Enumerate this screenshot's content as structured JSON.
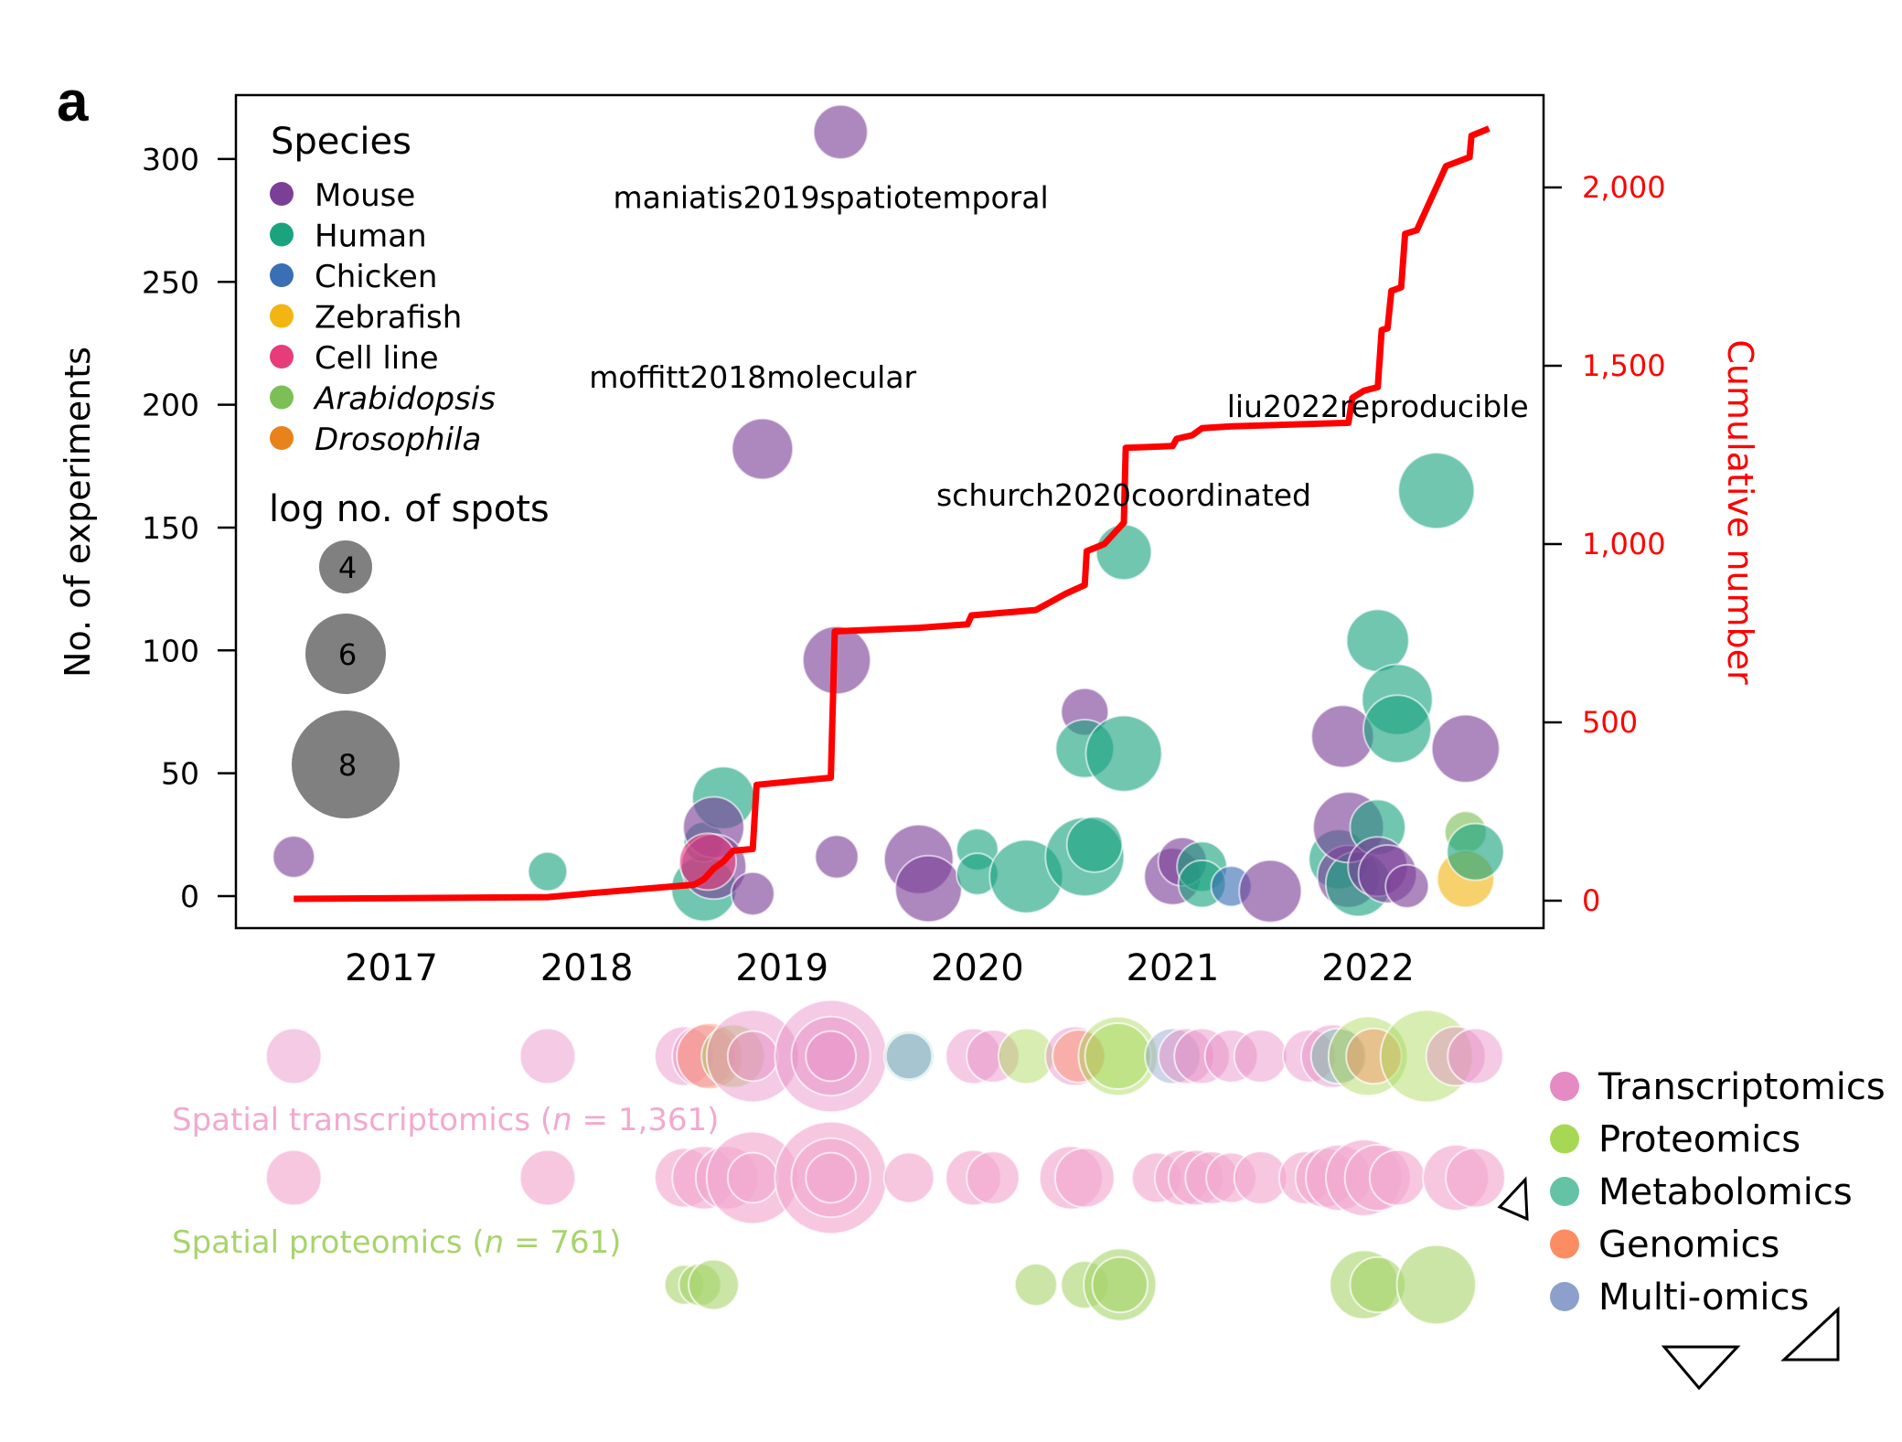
{
  "panel_label": "a",
  "chart_data": [
    {
      "type": "scatter",
      "subtype": "bubble-with-cumulative-line",
      "title": "",
      "xlabel": "",
      "ylabel": "No. of experiments",
      "y2label": "Cumulative number",
      "xlim": [
        2016.2,
        2022.9
      ],
      "ylim": [
        -12,
        325
      ],
      "y2lim": [
        -80,
        2290
      ],
      "xticks": [
        2017,
        2018,
        2019,
        2020,
        2021,
        2022
      ],
      "xtick_labels": [
        "2017",
        "2018",
        "2019",
        "2020",
        "2021",
        "2022"
      ],
      "yticks": [
        0,
        50,
        100,
        150,
        200,
        250,
        300
      ],
      "ytick_labels": [
        "0",
        "50",
        "100",
        "150",
        "200",
        "250",
        "300"
      ],
      "y2ticks": [
        0,
        500,
        1000,
        1500,
        2000
      ],
      "y2tick_labels": [
        "0",
        "500",
        "1,000",
        "1,500",
        "2,000"
      ],
      "grid": false,
      "species_legend": {
        "title": "Species",
        "placement": "top-left",
        "entries": [
          {
            "label": "Mouse",
            "color": "#7b3f98",
            "italic": false
          },
          {
            "label": "Human",
            "color": "#1aa37f",
            "italic": false
          },
          {
            "label": "Chicken",
            "color": "#3a6eb5",
            "italic": false
          },
          {
            "label": "Zebrafish",
            "color": "#f2b511",
            "italic": false
          },
          {
            "label": "Cell line",
            "color": "#e63d7a",
            "italic": false
          },
          {
            "label": "Arabidopsis",
            "color": "#7cbf57",
            "italic": true
          },
          {
            "label": "Drosophila",
            "color": "#e8821a",
            "italic": true
          }
        ]
      },
      "size_legend": {
        "title": "log no. of spots",
        "entries": [
          {
            "label": "4",
            "value": 4
          },
          {
            "label": "6",
            "value": 6
          },
          {
            "label": "8",
            "value": 8
          },
          {
            "label": "",
            "value": 0
          }
        ],
        "color": "#808080"
      },
      "annotations": [
        {
          "text": "maniatis2019spatiotemporal",
          "x": 2019.25,
          "y": 280
        },
        {
          "text": "moffitt2018molecular",
          "x": 2018.85,
          "y": 207
        },
        {
          "text": "schurch2020coordinated",
          "x": 2020.75,
          "y": 159
        },
        {
          "text": "liu2022reproducible",
          "x": 2022.05,
          "y": 195
        }
      ],
      "bubbles": [
        {
          "x": 2016.5,
          "y": 16,
          "species": "Mouse",
          "log_spots": 4.5
        },
        {
          "x": 2017.8,
          "y": 10,
          "species": "Human",
          "log_spots": 4.3
        },
        {
          "x": 2018.6,
          "y": 3,
          "species": "Human",
          "log_spots": 6.2
        },
        {
          "x": 2018.6,
          "y": 22,
          "species": "Human",
          "log_spots": 4.4
        },
        {
          "x": 2018.7,
          "y": 40,
          "species": "Human",
          "log_spots": 6.0
        },
        {
          "x": 2018.65,
          "y": 28,
          "species": "Mouse",
          "log_spots": 5.9
        },
        {
          "x": 2018.65,
          "y": 12,
          "species": "Mouse",
          "log_spots": 6.2
        },
        {
          "x": 2018.62,
          "y": 14,
          "species": "Cell line",
          "log_spots": 5.6
        },
        {
          "x": 2018.85,
          "y": 1,
          "species": "Mouse",
          "log_spots": 4.6
        },
        {
          "x": 2018.9,
          "y": 182,
          "species": "Mouse",
          "log_spots": 5.9
        },
        {
          "x": 2019.3,
          "y": 311,
          "species": "Mouse",
          "log_spots": 5.4
        },
        {
          "x": 2019.28,
          "y": 16,
          "species": "Mouse",
          "log_spots": 4.6
        },
        {
          "x": 2019.28,
          "y": 96,
          "species": "Mouse",
          "log_spots": 6.4
        },
        {
          "x": 2019.7,
          "y": 15,
          "species": "Mouse",
          "log_spots": 6.5
        },
        {
          "x": 2019.75,
          "y": 3,
          "species": "Mouse",
          "log_spots": 6.3
        },
        {
          "x": 2020.0,
          "y": 19,
          "species": "Human",
          "log_spots": 4.5
        },
        {
          "x": 2020.0,
          "y": 9,
          "species": "Human",
          "log_spots": 4.5
        },
        {
          "x": 2020.25,
          "y": 8,
          "species": "Human",
          "log_spots": 6.8
        },
        {
          "x": 2020.55,
          "y": 16,
          "species": "Human",
          "log_spots": 7.2
        },
        {
          "x": 2020.6,
          "y": 21,
          "species": "Human",
          "log_spots": 5.5
        },
        {
          "x": 2020.55,
          "y": 75,
          "species": "Mouse",
          "log_spots": 4.9
        },
        {
          "x": 2020.55,
          "y": 60,
          "species": "Human",
          "log_spots": 5.7
        },
        {
          "x": 2020.75,
          "y": 58,
          "species": "Human",
          "log_spots": 7.0
        },
        {
          "x": 2020.75,
          "y": 140,
          "species": "Human",
          "log_spots": 5.5
        },
        {
          "x": 2021.0,
          "y": 8,
          "species": "Mouse",
          "log_spots": 5.6
        },
        {
          "x": 2021.05,
          "y": 14,
          "species": "Mouse",
          "log_spots": 5.0
        },
        {
          "x": 2021.15,
          "y": 12,
          "species": "Human",
          "log_spots": 5.1
        },
        {
          "x": 2021.15,
          "y": 5,
          "species": "Human",
          "log_spots": 4.9
        },
        {
          "x": 2021.3,
          "y": 4,
          "species": "Chicken",
          "log_spots": 4.4
        },
        {
          "x": 2021.5,
          "y": 2,
          "species": "Mouse",
          "log_spots": 6.0
        },
        {
          "x": 2021.85,
          "y": 15,
          "species": "Human",
          "log_spots": 5.8
        },
        {
          "x": 2021.9,
          "y": 8,
          "species": "Mouse",
          "log_spots": 6.0
        },
        {
          "x": 2021.95,
          "y": 5,
          "species": "Human",
          "log_spots": 6.2
        },
        {
          "x": 2021.9,
          "y": 28,
          "species": "Mouse",
          "log_spots": 6.6
        },
        {
          "x": 2022.05,
          "y": 28,
          "species": "Human",
          "log_spots": 5.5
        },
        {
          "x": 2022.05,
          "y": 12,
          "species": "Mouse",
          "log_spots": 5.8
        },
        {
          "x": 2022.1,
          "y": 9,
          "species": "Mouse",
          "log_spots": 5.7
        },
        {
          "x": 2022.2,
          "y": 4,
          "species": "Mouse",
          "log_spots": 4.6
        },
        {
          "x": 2021.87,
          "y": 65,
          "species": "Mouse",
          "log_spots": 6.0
        },
        {
          "x": 2022.05,
          "y": 104,
          "species": "Human",
          "log_spots": 6.0
        },
        {
          "x": 2022.15,
          "y": 80,
          "species": "Human",
          "log_spots": 6.6
        },
        {
          "x": 2022.15,
          "y": 68,
          "species": "Human",
          "log_spots": 6.4
        },
        {
          "x": 2022.5,
          "y": 60,
          "species": "Mouse",
          "log_spots": 6.4
        },
        {
          "x": 2022.35,
          "y": 165,
          "species": "Human",
          "log_spots": 7.0
        },
        {
          "x": 2022.5,
          "y": 26,
          "species": "Arabidopsis",
          "log_spots": 4.5
        },
        {
          "x": 2022.5,
          "y": 7,
          "species": "Zebrafish",
          "log_spots": 5.6
        },
        {
          "x": 2022.55,
          "y": 18,
          "species": "Human",
          "log_spots": 5.6
        }
      ],
      "cumulative_line": {
        "color": "#ff0000",
        "points": [
          [
            2016.5,
            5
          ],
          [
            2017.8,
            10
          ],
          [
            2018.0,
            20
          ],
          [
            2018.55,
            45
          ],
          [
            2018.6,
            60
          ],
          [
            2018.65,
            90
          ],
          [
            2018.7,
            110
          ],
          [
            2018.75,
            140
          ],
          [
            2018.85,
            145
          ],
          [
            2018.87,
            325
          ],
          [
            2019.25,
            345
          ],
          [
            2019.27,
            755
          ],
          [
            2019.7,
            765
          ],
          [
            2019.95,
            775
          ],
          [
            2019.97,
            800
          ],
          [
            2020.3,
            815
          ],
          [
            2020.45,
            860
          ],
          [
            2020.55,
            885
          ],
          [
            2020.56,
            980
          ],
          [
            2020.65,
            1000
          ],
          [
            2020.75,
            1060
          ],
          [
            2020.76,
            1270
          ],
          [
            2021.0,
            1275
          ],
          [
            2021.02,
            1295
          ],
          [
            2021.1,
            1305
          ],
          [
            2021.15,
            1325
          ],
          [
            2021.3,
            1330
          ],
          [
            2021.9,
            1340
          ],
          [
            2021.92,
            1410
          ],
          [
            2021.98,
            1430
          ],
          [
            2022.05,
            1440
          ],
          [
            2022.07,
            1600
          ],
          [
            2022.1,
            1605
          ],
          [
            2022.12,
            1710
          ],
          [
            2022.17,
            1720
          ],
          [
            2022.19,
            1870
          ],
          [
            2022.25,
            1880
          ],
          [
            2022.4,
            2060
          ],
          [
            2022.52,
            2085
          ],
          [
            2022.53,
            2145
          ],
          [
            2022.62,
            2165
          ]
        ]
      }
    },
    {
      "type": "scatter",
      "subtype": "strip-bubble",
      "title": "",
      "xlim": [
        2016.2,
        2022.9
      ],
      "rows": [
        {
          "label": "Spatial transcriptomics",
          "n_prefix": " (",
          "n_symbol": "n",
          "n_text": " = 1,361)",
          "color": "#f2a9cf"
        },
        {
          "label": "Spatial proteomics",
          "n_prefix": " (",
          "n_symbol": "n",
          "n_text": " = 761)",
          "color": "#a7d46b"
        }
      ],
      "omics_legend": {
        "placement": "bottom-right",
        "entries": [
          {
            "label": "Transcriptomics",
            "color": "#e68ac3"
          },
          {
            "label": "Proteomics",
            "color": "#a6d854"
          },
          {
            "label": "Metabolomics",
            "color": "#66c2a5"
          },
          {
            "label": "Genomics",
            "color": "#fc8d62"
          },
          {
            "label": "Multi-omics",
            "color": "#8da0cb"
          }
        ]
      },
      "strip_mixed": [
        {
          "x": 2016.5,
          "r": 4.2,
          "omics": "Transcriptomics"
        },
        {
          "x": 2017.8,
          "r": 4.2,
          "omics": "Transcriptomics"
        },
        {
          "x": 2018.5,
          "r": 4.5,
          "omics": "Transcriptomics"
        },
        {
          "x": 2018.6,
          "r": 4.8,
          "omics": "Transcriptomics"
        },
        {
          "x": 2018.63,
          "r": 5.0,
          "omics": "Genomics"
        },
        {
          "x": 2018.75,
          "r": 4.8,
          "omics": "Proteomics"
        },
        {
          "x": 2018.85,
          "r": 7.0,
          "omics": "Transcriptomics"
        },
        {
          "x": 2018.85,
          "r": 3.8,
          "omics": "Transcriptomics"
        },
        {
          "x": 2019.25,
          "r": 8.5,
          "omics": "Transcriptomics"
        },
        {
          "x": 2019.25,
          "r": 6.0,
          "omics": "Transcriptomics"
        },
        {
          "x": 2019.25,
          "r": 3.8,
          "omics": "Transcriptomics"
        },
        {
          "x": 2019.65,
          "r": 3.8,
          "omics": "Metabolomics"
        },
        {
          "x": 2019.65,
          "r": 3.5,
          "omics": "Multi-omics"
        },
        {
          "x": 2019.98,
          "r": 4.2,
          "omics": "Transcriptomics"
        },
        {
          "x": 2020.08,
          "r": 4.0,
          "omics": "Transcriptomics"
        },
        {
          "x": 2020.25,
          "r": 4.2,
          "omics": "Proteomics"
        },
        {
          "x": 2020.5,
          "r": 4.5,
          "omics": "Transcriptomics"
        },
        {
          "x": 2020.52,
          "r": 4.0,
          "omics": "Genomics"
        },
        {
          "x": 2020.72,
          "r": 6.0,
          "omics": "Proteomics"
        },
        {
          "x": 2020.72,
          "r": 5.0,
          "omics": "Proteomics"
        },
        {
          "x": 2021.0,
          "r": 4.2,
          "omics": "Multi-omics"
        },
        {
          "x": 2021.07,
          "r": 4.2,
          "omics": "Transcriptomics"
        },
        {
          "x": 2021.15,
          "r": 4.2,
          "omics": "Transcriptomics"
        },
        {
          "x": 2021.3,
          "r": 4.0,
          "omics": "Transcriptomics"
        },
        {
          "x": 2021.45,
          "r": 4.0,
          "omics": "Transcriptomics"
        },
        {
          "x": 2021.7,
          "r": 4.0,
          "omics": "Transcriptomics"
        },
        {
          "x": 2021.82,
          "r": 4.8,
          "omics": "Transcriptomics"
        },
        {
          "x": 2021.85,
          "r": 4.2,
          "omics": "Metabolomics"
        },
        {
          "x": 2022.0,
          "r": 6.0,
          "omics": "Proteomics"
        },
        {
          "x": 2022.03,
          "r": 4.2,
          "omics": "Genomics"
        },
        {
          "x": 2022.3,
          "r": 7.0,
          "omics": "Proteomics"
        },
        {
          "x": 2022.45,
          "r": 4.5,
          "omics": "Transcriptomics"
        },
        {
          "x": 2022.55,
          "r": 4.2,
          "omics": "Transcriptomics"
        }
      ],
      "strip_transcriptomics": [
        {
          "x": 2016.5,
          "r": 4.2
        },
        {
          "x": 2017.8,
          "r": 4.2
        },
        {
          "x": 2018.5,
          "r": 4.5
        },
        {
          "x": 2018.6,
          "r": 4.8
        },
        {
          "x": 2018.72,
          "r": 4.8
        },
        {
          "x": 2018.85,
          "r": 7.0
        },
        {
          "x": 2018.85,
          "r": 3.8
        },
        {
          "x": 2019.25,
          "r": 8.5
        },
        {
          "x": 2019.25,
          "r": 6.0
        },
        {
          "x": 2019.25,
          "r": 3.8
        },
        {
          "x": 2019.65,
          "r": 3.8
        },
        {
          "x": 2019.98,
          "r": 4.2
        },
        {
          "x": 2020.08,
          "r": 4.0
        },
        {
          "x": 2020.48,
          "r": 4.8
        },
        {
          "x": 2020.55,
          "r": 4.5
        },
        {
          "x": 2020.92,
          "r": 3.8
        },
        {
          "x": 2021.05,
          "r": 4.2
        },
        {
          "x": 2021.12,
          "r": 4.2
        },
        {
          "x": 2021.2,
          "r": 4.0
        },
        {
          "x": 2021.3,
          "r": 3.8
        },
        {
          "x": 2021.45,
          "r": 4.0
        },
        {
          "x": 2021.68,
          "r": 4.0
        },
        {
          "x": 2021.78,
          "r": 4.5
        },
        {
          "x": 2021.85,
          "r": 5.0
        },
        {
          "x": 2021.98,
          "r": 5.8
        },
        {
          "x": 2022.05,
          "r": 5.0
        },
        {
          "x": 2022.15,
          "r": 4.2
        },
        {
          "x": 2022.45,
          "r": 5.0
        },
        {
          "x": 2022.55,
          "r": 4.5
        }
      ],
      "strip_proteomics": [
        {
          "x": 2018.5,
          "r": 3.0
        },
        {
          "x": 2018.58,
          "r": 3.2
        },
        {
          "x": 2018.65,
          "r": 3.8
        },
        {
          "x": 2020.3,
          "r": 3.2
        },
        {
          "x": 2020.55,
          "r": 3.6
        },
        {
          "x": 2020.73,
          "r": 5.5
        },
        {
          "x": 2020.73,
          "r": 4.2
        },
        {
          "x": 2021.98,
          "r": 5.2
        },
        {
          "x": 2022.05,
          "r": 4.2
        },
        {
          "x": 2022.35,
          "r": 6.0
        }
      ]
    }
  ]
}
